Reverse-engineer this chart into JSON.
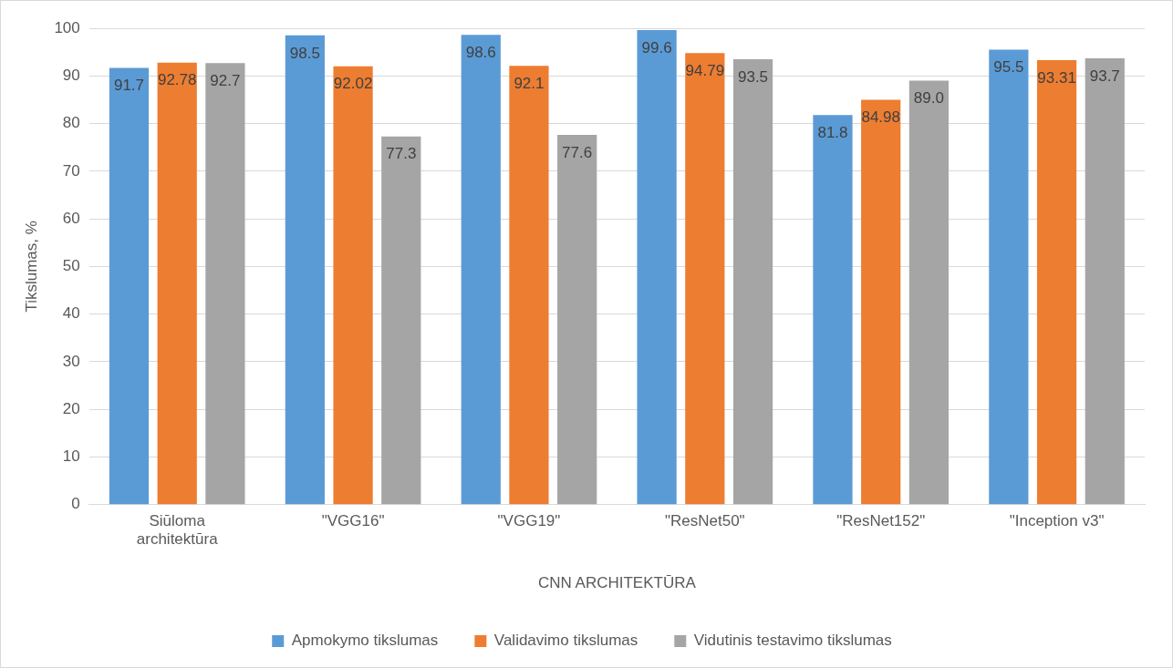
{
  "chart_data": {
    "type": "bar",
    "xlabel": "CNN ARCHITEKTŪRA",
    "ylabel": "Tikslumas, %",
    "categories": [
      "Siūloma architektūra",
      "\"VGG16\"",
      "\"VGG19\"",
      "\"ResNet50\"",
      "\"ResNet152\"",
      "\"Inception v3\""
    ],
    "series": [
      {
        "name": "Apmokymo tikslumas",
        "color": "#5b9bd5",
        "values": [
          91.7,
          98.5,
          98.6,
          99.6,
          81.8,
          95.5
        ],
        "value_labels": [
          "91.7",
          "98.5",
          "98.6",
          "99.6",
          "81.8",
          "95.5"
        ]
      },
      {
        "name": "Validavimo tikslumas",
        "color": "#ed7d31",
        "values": [
          92.78,
          92.02,
          92.1,
          94.79,
          84.98,
          93.31
        ],
        "value_labels": [
          "92.78",
          "92.02",
          "92.1",
          "94.79",
          "84.98",
          "93.31"
        ]
      },
      {
        "name": "Vidutinis testavimo tikslumas",
        "color": "#a5a5a5",
        "values": [
          92.7,
          77.3,
          77.6,
          93.5,
          89.0,
          93.7
        ],
        "value_labels": [
          "92.7",
          "77.3",
          "77.6",
          "93.5",
          "89.0",
          "93.7"
        ]
      }
    ],
    "ylim": [
      0,
      100
    ],
    "yticks": [
      0,
      10,
      20,
      30,
      40,
      50,
      60,
      70,
      80,
      90,
      100
    ],
    "grid": "y",
    "legend": "bottom"
  }
}
